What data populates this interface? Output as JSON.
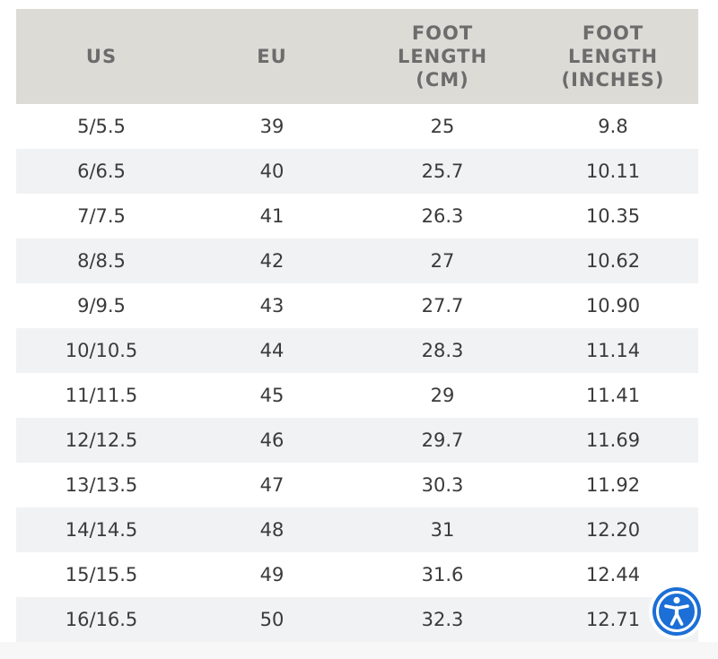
{
  "table": {
    "headers": [
      {
        "lines": [
          "US"
        ]
      },
      {
        "lines": [
          "EU"
        ]
      },
      {
        "lines": [
          "FOOT",
          "LENGTH",
          "(CM)"
        ]
      },
      {
        "lines": [
          "FOOT",
          "LENGTH",
          "(INCHES)"
        ]
      }
    ],
    "rows": [
      [
        "5/5.5",
        "39",
        "25",
        "9.8"
      ],
      [
        "6/6.5",
        "40",
        "25.7",
        "10.11"
      ],
      [
        "7/7.5",
        "41",
        "26.3",
        "10.35"
      ],
      [
        "8/8.5",
        "42",
        "27",
        "10.62"
      ],
      [
        "9/9.5",
        "43",
        "27.7",
        "10.90"
      ],
      [
        "10/10.5",
        "44",
        "28.3",
        "11.14"
      ],
      [
        "11/11.5",
        "45",
        "29",
        "11.41"
      ],
      [
        "12/12.5",
        "46",
        "29.7",
        "11.69"
      ],
      [
        "13/13.5",
        "47",
        "30.3",
        "11.92"
      ],
      [
        "14/14.5",
        "48",
        "31",
        "12.20"
      ],
      [
        "15/15.5",
        "49",
        "31.6",
        "12.44"
      ],
      [
        "16/16.5",
        "50",
        "32.3",
        "12.71"
      ]
    ]
  },
  "colors": {
    "header_background": "#dddbd6",
    "header_text": "#6c6c6c",
    "stripe_background": "#f1f2f3",
    "cell_text": "#3a3a3a",
    "accessibility_accent": "#1b6fd6"
  },
  "accessibility_widget": {
    "icon": "accessibility-person-icon"
  }
}
